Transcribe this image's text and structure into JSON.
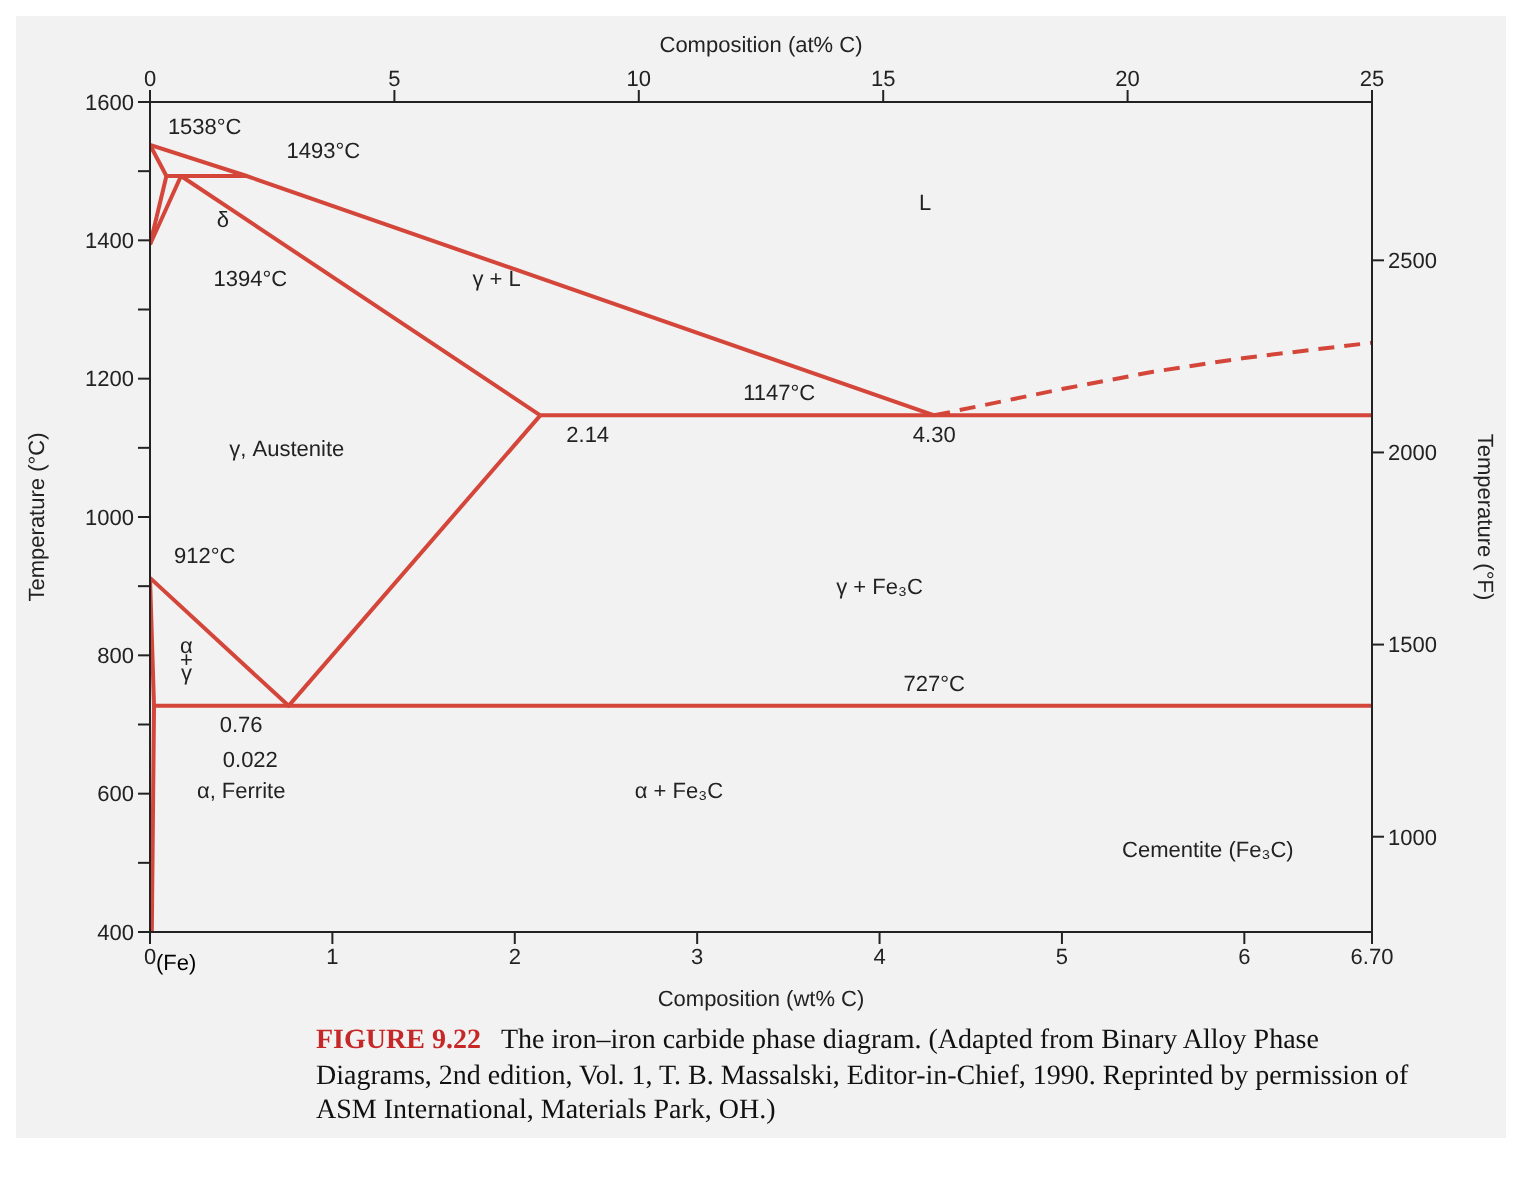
{
  "chart_data": {
    "type": "line",
    "title": "FIGURE 9.22",
    "subtitle": "The iron–iron carbide phase diagram. (Adapted from Binary Alloy Phase Diagrams, 2nd edition, Vol. 1, T. B. Massalski, Editor-in-Chief, 1990. Reprinted by permission of ASM International, Materials Park, OH.)",
    "xlabel": "Composition (wt% C)",
    "ylabel": "Temperature (°C)",
    "x2label": "Composition (at% C)",
    "y2label": "Temperature (°F)",
    "xlim": [
      0,
      6.7
    ],
    "xticks": [
      0,
      1,
      2,
      3,
      4,
      5,
      6,
      {
        "value": 6.7,
        "label": "6.70"
      }
    ],
    "x2lim": [
      0,
      25
    ],
    "x2ticks": [
      0,
      5,
      10,
      15,
      20,
      25
    ],
    "ylim": [
      400,
      1600
    ],
    "yticks": [
      400,
      {
        "value": 500,
        "label": null
      },
      600,
      {
        "value": 700,
        "label": null
      },
      800,
      {
        "value": 900,
        "label": null
      },
      1000,
      {
        "value": 1100,
        "label": null
      },
      1200,
      {
        "value": 1300,
        "label": null
      },
      1400,
      {
        "value": 1500,
        "label": null
      },
      1600
    ],
    "y2lim": [
      752,
      2912
    ],
    "y2ticks": [
      1000,
      1500,
      2000,
      2500
    ],
    "grid": false,
    "marker": "none",
    "series": [
      {
        "color": "#d4453a",
        "x": [
          0,
          0.53,
          4.3
        ],
        "values": [
          1538,
          1493,
          1147
        ]
      },
      {
        "color": "#d4453a",
        "x": [
          4.3,
          5.0,
          5.5,
          6.0,
          6.7
        ],
        "values": [
          1147,
          1185,
          1210,
          1230,
          1252
        ],
        "line_style": "dashed"
      },
      {
        "color": "#d4453a",
        "x": [
          0,
          0.09
        ],
        "values": [
          1538,
          1493
        ]
      },
      {
        "color": "#d4453a",
        "x": [
          0.09,
          0.53
        ],
        "values": [
          1493,
          1493
        ]
      },
      {
        "color": "#d4453a",
        "x": [
          0.09,
          0
        ],
        "values": [
          1493,
          1394
        ]
      },
      {
        "color": "#d4453a",
        "x": [
          0,
          0.17,
          2.14
        ],
        "values": [
          1394,
          1493,
          1147
        ]
      },
      {
        "color": "#d4453a",
        "x": [
          2.14,
          6.7
        ],
        "values": [
          1147,
          1147
        ]
      },
      {
        "color": "#d4453a",
        "x": [
          0,
          0.76,
          2.14
        ],
        "values": [
          912,
          727,
          1147
        ]
      },
      {
        "color": "#d4453a",
        "x": [
          0.022,
          6.7
        ],
        "values": [
          727,
          727
        ]
      },
      {
        "color": "#d4453a",
        "x": [
          0,
          0.022,
          0.01
        ],
        "values": [
          912,
          727,
          400
        ]
      }
    ],
    "annotations": [
      "1538°C",
      "1493°C",
      "δ",
      "1394°C",
      "L",
      "γ + L",
      "1147°C",
      "2.14",
      "4.30",
      "γ, Austenite",
      "912°C",
      "γ + Fe₃C",
      "α",
      "+",
      "γ",
      "727°C",
      "0.76",
      "0.022",
      "α, Ferrite",
      "α + Fe₃C",
      "Cementite (Fe₃C)",
      "(Fe)"
    ]
  }
}
